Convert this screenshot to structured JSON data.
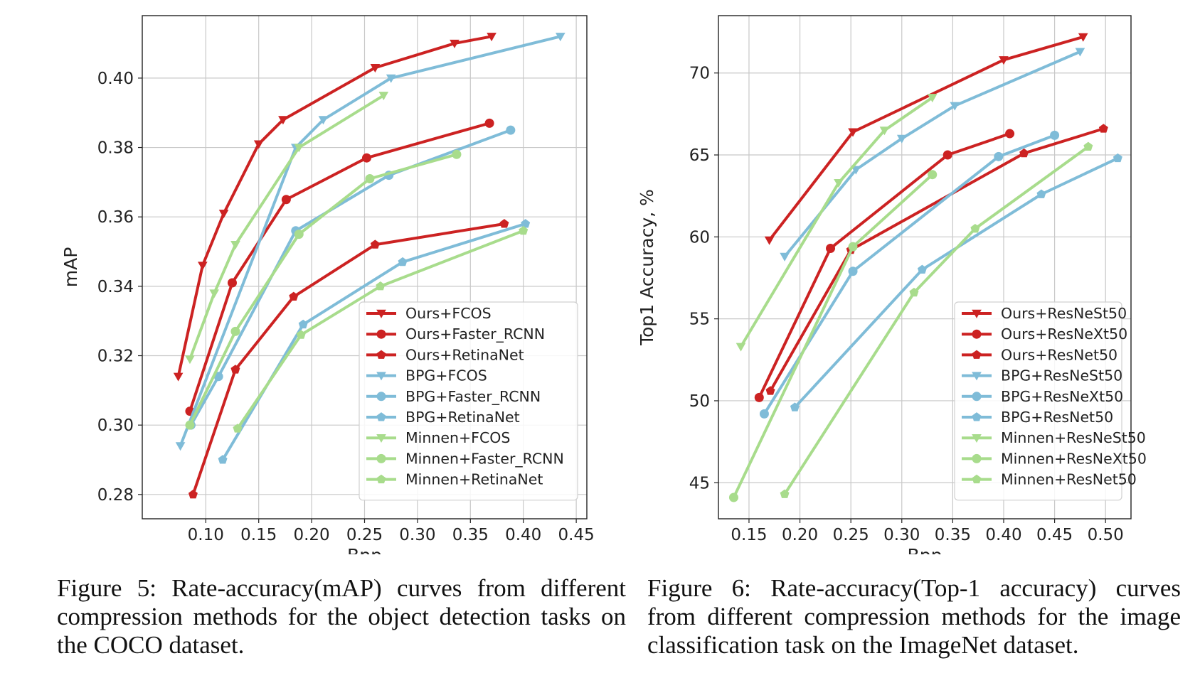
{
  "colors": {
    "ours": "#cc2222",
    "bpg": "#7fbcd8",
    "minnen": "#a8dc8c"
  },
  "captions": {
    "fig5": "Figure 5: Rate-accuracy(mAP) curves from different compression methods for the object detection tasks on the COCO dataset.",
    "fig6": "Figure 6:   Rate-accuracy(Top-1 accuracy) curves from different compression methods for the image classification task on the ImageNet dataset."
  },
  "chart_data": [
    {
      "type": "line",
      "title": "",
      "xlabel": "Bpp",
      "ylabel": "mAP",
      "xlim": [
        0.04,
        0.46
      ],
      "ylim": [
        0.273,
        0.418
      ],
      "xticks": [
        0.1,
        0.15,
        0.2,
        0.25,
        0.3,
        0.35,
        0.4,
        0.45
      ],
      "xtick_labels": [
        "0.10",
        "0.15",
        "0.20",
        "0.25",
        "0.30",
        "0.35",
        "0.40",
        "0.45"
      ],
      "yticks": [
        0.28,
        0.3,
        0.32,
        0.34,
        0.36,
        0.38,
        0.4
      ],
      "ytick_labels": [
        "0.28",
        "0.30",
        "0.32",
        "0.34",
        "0.36",
        "0.38",
        "0.40"
      ],
      "grid": true,
      "legend_position": "lower-right",
      "series": [
        {
          "name": "Ours+FCOS",
          "color": "#cc2222",
          "marker": "triangle-down",
          "x": [
            0.074,
            0.097,
            0.117,
            0.15,
            0.173,
            0.26,
            0.335,
            0.37
          ],
          "y": [
            0.314,
            0.346,
            0.361,
            0.381,
            0.388,
            0.403,
            0.41,
            0.412
          ]
        },
        {
          "name": "Ours+Faster_RCNN",
          "color": "#cc2222",
          "marker": "circle",
          "x": [
            0.085,
            0.125,
            0.176,
            0.252,
            0.368
          ],
          "y": [
            0.304,
            0.341,
            0.365,
            0.377,
            0.387
          ]
        },
        {
          "name": "Ours+RetinaNet",
          "color": "#cc2222",
          "marker": "pentagon",
          "x": [
            0.088,
            0.128,
            0.183,
            0.26,
            0.382
          ],
          "y": [
            0.28,
            0.316,
            0.337,
            0.352,
            0.358
          ]
        },
        {
          "name": "BPG+FCOS",
          "color": "#7fbcd8",
          "marker": "triangle-down",
          "x": [
            0.076,
            0.185,
            0.211,
            0.275,
            0.435
          ],
          "y": [
            0.294,
            0.38,
            0.388,
            0.4,
            0.412
          ]
        },
        {
          "name": "BPG+Faster_RCNN",
          "color": "#7fbcd8",
          "marker": "circle",
          "x": [
            0.086,
            0.112,
            0.185,
            0.273,
            0.388
          ],
          "y": [
            0.3,
            0.314,
            0.356,
            0.372,
            0.385
          ]
        },
        {
          "name": "BPG+RetinaNet",
          "color": "#7fbcd8",
          "marker": "pentagon",
          "x": [
            0.116,
            0.192,
            0.286,
            0.402
          ],
          "y": [
            0.29,
            0.329,
            0.347,
            0.358
          ]
        },
        {
          "name": "Minnen+FCOS",
          "color": "#a8dc8c",
          "marker": "triangle-down",
          "x": [
            0.085,
            0.108,
            0.128,
            0.188,
            0.268
          ],
          "y": [
            0.319,
            0.338,
            0.352,
            0.38,
            0.395
          ]
        },
        {
          "name": "Minnen+Faster_RCNN",
          "color": "#a8dc8c",
          "marker": "circle",
          "x": [
            0.085,
            0.128,
            0.188,
            0.255,
            0.337
          ],
          "y": [
            0.3,
            0.327,
            0.355,
            0.371,
            0.378
          ]
        },
        {
          "name": "Minnen+RetinaNet",
          "color": "#a8dc8c",
          "marker": "pentagon",
          "x": [
            0.13,
            0.19,
            0.265,
            0.4
          ],
          "y": [
            0.299,
            0.326,
            0.34,
            0.356
          ]
        }
      ]
    },
    {
      "type": "line",
      "title": "",
      "xlabel": "Bpp",
      "ylabel": "Top1 Accuracy, %",
      "xlim": [
        0.12,
        0.525
      ],
      "ylim": [
        42.8,
        73.5
      ],
      "xticks": [
        0.15,
        0.2,
        0.25,
        0.3,
        0.35,
        0.4,
        0.45,
        0.5
      ],
      "xtick_labels": [
        "0.15",
        "0.20",
        "0.25",
        "0.30",
        "0.35",
        "0.40",
        "0.45",
        "0.50"
      ],
      "yticks": [
        45,
        50,
        55,
        60,
        65,
        70
      ],
      "ytick_labels": [
        "45",
        "50",
        "55",
        "60",
        "65",
        "70"
      ],
      "grid": true,
      "legend_position": "lower-right",
      "series": [
        {
          "name": "Ours+ResNeSt50",
          "color": "#cc2222",
          "marker": "triangle-down",
          "x": [
            0.17,
            0.252,
            0.4,
            0.478
          ],
          "y": [
            59.8,
            66.4,
            70.8,
            72.2
          ]
        },
        {
          "name": "Ours+ResNeXt50",
          "color": "#cc2222",
          "marker": "circle",
          "x": [
            0.16,
            0.23,
            0.345,
            0.406
          ],
          "y": [
            50.2,
            59.3,
            65.0,
            66.3
          ]
        },
        {
          "name": "Ours+ResNet50",
          "color": "#cc2222",
          "marker": "pentagon",
          "x": [
            0.171,
            0.25,
            0.42,
            0.498
          ],
          "y": [
            50.6,
            59.2,
            65.1,
            66.6
          ]
        },
        {
          "name": "BPG+ResNeSt50",
          "color": "#7fbcd8",
          "marker": "triangle-down",
          "x": [
            0.185,
            0.255,
            0.3,
            0.352,
            0.475
          ],
          "y": [
            58.8,
            64.1,
            66.0,
            68.0,
            71.3
          ]
        },
        {
          "name": "BPG+ResNeXt50",
          "color": "#7fbcd8",
          "marker": "circle",
          "x": [
            0.165,
            0.252,
            0.395,
            0.45
          ],
          "y": [
            49.2,
            57.9,
            64.9,
            66.2
          ]
        },
        {
          "name": "BPG+ResNet50",
          "color": "#7fbcd8",
          "marker": "pentagon",
          "x": [
            0.195,
            0.32,
            0.437,
            0.512
          ],
          "y": [
            49.6,
            58.0,
            62.6,
            64.8
          ]
        },
        {
          "name": "Minnen+ResNeSt50",
          "color": "#a8dc8c",
          "marker": "triangle-down",
          "x": [
            0.142,
            0.238,
            0.283,
            0.33
          ],
          "y": [
            53.3,
            63.3,
            66.5,
            68.5
          ]
        },
        {
          "name": "Minnen+ResNeXt50",
          "color": "#a8dc8c",
          "marker": "circle",
          "x": [
            0.135,
            0.252,
            0.33
          ],
          "y": [
            44.1,
            59.4,
            63.8
          ]
        },
        {
          "name": "Minnen+ResNet50",
          "color": "#a8dc8c",
          "marker": "pentagon",
          "x": [
            0.185,
            0.312,
            0.372,
            0.483
          ],
          "y": [
            44.3,
            56.6,
            60.5,
            65.5
          ]
        }
      ]
    }
  ]
}
